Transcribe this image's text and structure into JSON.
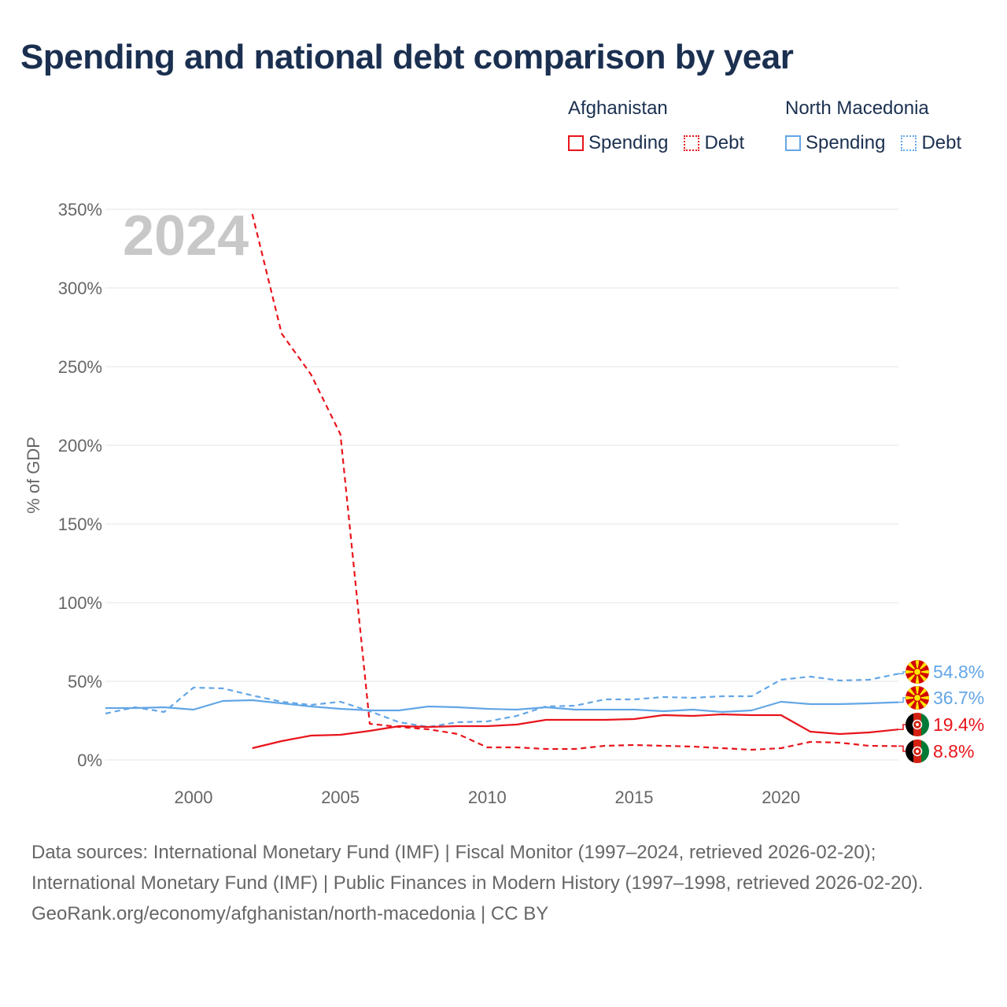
{
  "title": "Spending and national debt comparison by year",
  "legend": {
    "groups": [
      {
        "country": "Afghanistan",
        "color": "#e8141b",
        "items": [
          "Spending",
          "Debt"
        ]
      },
      {
        "country": "North Macedonia",
        "color": "#63a6e6",
        "items": [
          "Spending",
          "Debt"
        ]
      }
    ]
  },
  "colors": {
    "afghanistan": "#e8141b",
    "north_macedonia": "#63a6e6",
    "gridline": "#e6e6e6",
    "year_watermark": "#c8c8c8"
  },
  "chart_data": {
    "type": "line",
    "title": "Spending and national debt comparison by year",
    "year_label": "2024",
    "xlabel": "",
    "ylabel": "% of GDP",
    "xlim": [
      1997,
      2024
    ],
    "ylim": [
      0,
      350
    ],
    "x_ticks": [
      2000,
      2005,
      2010,
      2015,
      2020
    ],
    "y_ticks": [
      0,
      50,
      100,
      150,
      200,
      250,
      300,
      350
    ],
    "y_tick_labels": [
      "0%",
      "50%",
      "100%",
      "150%",
      "200%",
      "250%",
      "300%",
      "350%"
    ],
    "grid": true,
    "series": [
      {
        "name": "North Macedonia Spending",
        "country": "North Macedonia",
        "metric": "Spending",
        "color": "#63a6e6",
        "dash": "solid",
        "points": [
          [
            1997,
            33
          ],
          [
            1998,
            33
          ],
          [
            1999,
            33.5
          ],
          [
            2000,
            32
          ],
          [
            2001,
            37.5
          ],
          [
            2002,
            38
          ],
          [
            2003,
            36
          ],
          [
            2004,
            34
          ],
          [
            2005,
            32.5
          ],
          [
            2006,
            31.5
          ],
          [
            2007,
            31.5
          ],
          [
            2008,
            34
          ],
          [
            2009,
            33.5
          ],
          [
            2010,
            32.5
          ],
          [
            2011,
            32
          ],
          [
            2012,
            33.5
          ],
          [
            2013,
            32
          ],
          [
            2014,
            32
          ],
          [
            2015,
            32
          ],
          [
            2016,
            31
          ],
          [
            2017,
            32
          ],
          [
            2018,
            30.5
          ],
          [
            2019,
            31.5
          ],
          [
            2020,
            37
          ],
          [
            2021,
            35.5
          ],
          [
            2022,
            35.5
          ],
          [
            2023,
            36
          ],
          [
            2024,
            36.7
          ]
        ],
        "end_label": "36.7%"
      },
      {
        "name": "North Macedonia Debt",
        "country": "North Macedonia",
        "metric": "Debt",
        "color": "#63a6e6",
        "dash": "dashed",
        "points": [
          [
            1997,
            29.5
          ],
          [
            1998,
            33.5
          ],
          [
            1999,
            30.5
          ],
          [
            2000,
            46
          ],
          [
            2001,
            45.5
          ],
          [
            2002,
            41
          ],
          [
            2003,
            37
          ],
          [
            2004,
            35
          ],
          [
            2005,
            37
          ],
          [
            2006,
            31
          ],
          [
            2007,
            24
          ],
          [
            2008,
            21
          ],
          [
            2009,
            24
          ],
          [
            2010,
            24.5
          ],
          [
            2011,
            28
          ],
          [
            2012,
            34
          ],
          [
            2013,
            34.5
          ],
          [
            2014,
            38.5
          ],
          [
            2015,
            38.5
          ],
          [
            2016,
            40
          ],
          [
            2017,
            39.5
          ],
          [
            2018,
            40.5
          ],
          [
            2019,
            40.5
          ],
          [
            2020,
            51
          ],
          [
            2021,
            53
          ],
          [
            2022,
            50.5
          ],
          [
            2023,
            51
          ],
          [
            2024,
            54.8
          ]
        ],
        "end_label": "54.8%"
      },
      {
        "name": "Afghanistan Spending",
        "country": "Afghanistan",
        "metric": "Spending",
        "color": "#e8141b",
        "dash": "solid",
        "points": [
          [
            2002,
            7.5
          ],
          [
            2003,
            12
          ],
          [
            2004,
            15.5
          ],
          [
            2005,
            16
          ],
          [
            2006,
            18.5
          ],
          [
            2007,
            21.5
          ],
          [
            2008,
            21
          ],
          [
            2009,
            21.5
          ],
          [
            2010,
            21.5
          ],
          [
            2011,
            22.5
          ],
          [
            2012,
            25.5
          ],
          [
            2013,
            25.5
          ],
          [
            2014,
            25.5
          ],
          [
            2015,
            26
          ],
          [
            2016,
            28.5
          ],
          [
            2017,
            28
          ],
          [
            2018,
            29
          ],
          [
            2019,
            28.5
          ],
          [
            2020,
            28.5
          ],
          [
            2021,
            18
          ],
          [
            2022,
            16.5
          ],
          [
            2023,
            17.5
          ],
          [
            2024,
            19.4
          ]
        ],
        "end_label": "19.4%"
      },
      {
        "name": "Afghanistan Debt",
        "country": "Afghanistan",
        "metric": "Debt",
        "color": "#e8141b",
        "dash": "dashed",
        "points": [
          [
            2002,
            347
          ],
          [
            2003,
            271
          ],
          [
            2004,
            245
          ],
          [
            2005,
            207
          ],
          [
            2006,
            23
          ],
          [
            2007,
            21
          ],
          [
            2008,
            19.5
          ],
          [
            2009,
            16.5
          ],
          [
            2010,
            8
          ],
          [
            2011,
            8
          ],
          [
            2012,
            7
          ],
          [
            2013,
            7
          ],
          [
            2014,
            9
          ],
          [
            2015,
            9.5
          ],
          [
            2016,
            9
          ],
          [
            2017,
            8.5
          ],
          [
            2018,
            7.5
          ],
          [
            2019,
            6.5
          ],
          [
            2020,
            7.5
          ],
          [
            2021,
            11.5
          ],
          [
            2022,
            11
          ],
          [
            2023,
            9
          ],
          [
            2024,
            8.8
          ]
        ],
        "end_label": "8.8%"
      }
    ]
  },
  "footer": {
    "sources": "Data sources: International Monetary Fund (IMF) | Fiscal Monitor (1997–2024, retrieved 2026-02-20); International Monetary Fund (IMF) | Public Finances in Modern History (1997–1998, retrieved 2026-02-20).",
    "attribution": "GeoRank.org/economy/afghanistan/north-macedonia | CC BY"
  }
}
